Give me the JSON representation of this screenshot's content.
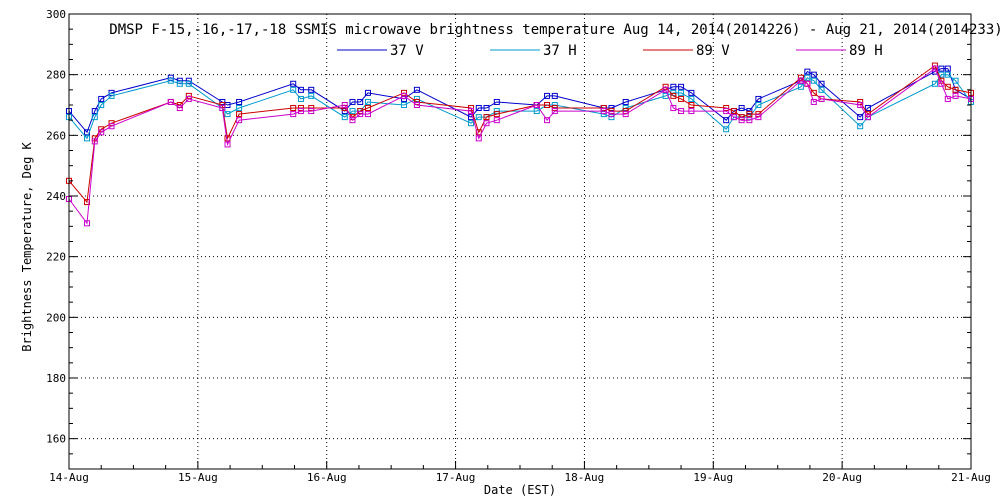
{
  "chart_data": {
    "type": "line",
    "title": "DMSP F-15,-16,-17,-18 SSMIS microwave brightness temperature Aug 14, 2014(2014226) - Aug 21, 2014(2014233)",
    "xlabel": "Date (EST)",
    "ylabel": "Brightness Temperature, Deg K",
    "xlim": [
      0,
      7
    ],
    "ylim": [
      150,
      300
    ],
    "x_ticks": [
      0,
      1,
      2,
      3,
      4,
      5,
      6,
      7
    ],
    "x_tick_labels": [
      "14-Aug",
      "15-Aug",
      "16-Aug",
      "17-Aug",
      "18-Aug",
      "19-Aug",
      "20-Aug",
      "21-Aug"
    ],
    "y_ticks": [
      160,
      180,
      200,
      220,
      240,
      260,
      280,
      300
    ],
    "y_tick_labels": [
      "160",
      "180",
      "200",
      "220",
      "240",
      "260",
      "280",
      "300"
    ],
    "grid": true,
    "x_unit": "days since Aug 14, 2014 00:00 EST",
    "series": [
      {
        "name": "37 V",
        "color": "#0000cc",
        "x": [
          0.0,
          0.14,
          0.2,
          0.25,
          0.33,
          0.79,
          0.86,
          0.93,
          1.19,
          1.23,
          1.32,
          1.74,
          1.8,
          1.88,
          2.14,
          2.2,
          2.26,
          2.32,
          2.6,
          2.7,
          3.12,
          3.18,
          3.24,
          3.32,
          3.63,
          3.71,
          3.77,
          4.15,
          4.21,
          4.32,
          4.63,
          4.69,
          4.75,
          4.83,
          5.1,
          5.16,
          5.22,
          5.28,
          5.35,
          5.68,
          5.73,
          5.78,
          5.84,
          6.14,
          6.2,
          6.72,
          6.77,
          6.82,
          6.88,
          7.0
        ],
        "values": [
          268,
          261,
          268,
          272,
          274,
          279,
          278,
          278,
          271,
          270,
          271,
          277,
          275,
          275,
          268,
          271,
          271,
          274,
          272,
          275,
          266,
          269,
          269,
          271,
          270,
          273,
          273,
          269,
          269,
          271,
          275,
          276,
          276,
          274,
          265,
          268,
          269,
          268,
          272,
          278,
          281,
          280,
          277,
          266,
          269,
          281,
          282,
          282,
          275,
          272
        ]
      },
      {
        "name": "37 H",
        "color": "#0099cc",
        "x": [
          0.0,
          0.14,
          0.2,
          0.25,
          0.33,
          0.79,
          0.86,
          0.93,
          1.19,
          1.23,
          1.32,
          1.74,
          1.8,
          1.88,
          2.14,
          2.2,
          2.26,
          2.32,
          2.6,
          2.7,
          3.12,
          3.18,
          3.24,
          3.32,
          3.63,
          3.71,
          3.77,
          4.15,
          4.21,
          4.32,
          4.63,
          4.69,
          4.75,
          4.83,
          5.1,
          5.16,
          5.22,
          5.28,
          5.35,
          5.68,
          5.73,
          5.78,
          5.84,
          6.14,
          6.2,
          6.72,
          6.77,
          6.82,
          6.88,
          7.0
        ],
        "values": [
          266,
          259,
          266,
          270,
          273,
          278,
          277,
          277,
          269,
          267,
          269,
          275,
          272,
          273,
          266,
          268,
          268,
          271,
          270,
          272,
          264,
          266,
          266,
          268,
          268,
          270,
          270,
          267,
          266,
          269,
          273,
          274,
          274,
          272,
          262,
          266,
          266,
          266,
          270,
          276,
          279,
          278,
          275,
          263,
          266,
          277,
          280,
          280,
          278,
          271
        ]
      },
      {
        "name": "89 V",
        "color": "#cc0000",
        "x": [
          0.0,
          0.14,
          0.2,
          0.25,
          0.33,
          0.79,
          0.86,
          0.93,
          1.19,
          1.23,
          1.32,
          1.74,
          1.8,
          1.88,
          2.14,
          2.2,
          2.26,
          2.32,
          2.6,
          2.7,
          3.12,
          3.18,
          3.24,
          3.32,
          3.63,
          3.71,
          3.77,
          4.15,
          4.21,
          4.32,
          4.63,
          4.69,
          4.75,
          4.83,
          5.1,
          5.16,
          5.22,
          5.28,
          5.35,
          5.68,
          5.73,
          5.78,
          5.84,
          6.14,
          6.2,
          6.72,
          6.77,
          6.82,
          6.88,
          7.0
        ],
        "values": [
          245,
          238,
          259,
          262,
          264,
          271,
          270,
          273,
          270,
          259,
          267,
          269,
          269,
          269,
          269,
          266,
          268,
          269,
          274,
          271,
          269,
          261,
          266,
          267,
          270,
          270,
          269,
          269,
          268,
          268,
          276,
          273,
          272,
          270,
          269,
          268,
          266,
          267,
          267,
          279,
          277,
          274,
          272,
          271,
          267,
          283,
          278,
          276,
          275,
          274
        ]
      },
      {
        "name": "89 H",
        "color": "#cc00cc",
        "x": [
          0.0,
          0.14,
          0.2,
          0.25,
          0.33,
          0.79,
          0.86,
          0.93,
          1.19,
          1.23,
          1.32,
          1.74,
          1.8,
          1.88,
          2.14,
          2.2,
          2.26,
          2.32,
          2.6,
          2.7,
          3.12,
          3.18,
          3.24,
          3.32,
          3.63,
          3.71,
          3.77,
          4.15,
          4.21,
          4.32,
          4.63,
          4.69,
          4.75,
          4.83,
          5.1,
          5.16,
          5.22,
          5.28,
          5.35,
          5.68,
          5.73,
          5.78,
          5.84,
          6.14,
          6.2,
          6.72,
          6.77,
          6.82,
          6.88,
          7.0
        ],
        "values": [
          239,
          231,
          258,
          261,
          263,
          271,
          269,
          272,
          269,
          257,
          265,
          267,
          268,
          268,
          270,
          265,
          267,
          267,
          273,
          270,
          268,
          259,
          264,
          265,
          270,
          265,
          268,
          268,
          267,
          267,
          275,
          269,
          268,
          268,
          268,
          266,
          265,
          265,
          266,
          278,
          277,
          271,
          272,
          270,
          266,
          282,
          277,
          272,
          273,
          272
        ]
      }
    ]
  }
}
